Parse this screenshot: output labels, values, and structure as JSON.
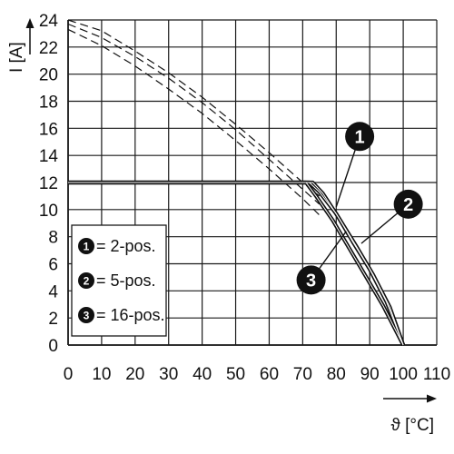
{
  "chart_data": {
    "type": "line",
    "xlabel": "ϑ [°C]",
    "ylabel": "I [A]",
    "xlim": [
      0,
      110
    ],
    "ylim": [
      0,
      24
    ],
    "x_ticks": [
      0,
      10,
      20,
      30,
      40,
      50,
      60,
      70,
      80,
      90,
      100,
      110
    ],
    "y_ticks": [
      0,
      2,
      4,
      6,
      8,
      10,
      12,
      14,
      16,
      18,
      20,
      22,
      24
    ],
    "grid": true,
    "legend_position": "bottom-left",
    "legend": [
      {
        "badge": "1",
        "label": "= 2-pos."
      },
      {
        "badge": "2",
        "label": "= 5-pos."
      },
      {
        "badge": "3",
        "label": "= 16-pos."
      }
    ],
    "series": [
      {
        "badge": "1",
        "style": "solid",
        "x": [
          0,
          72,
          75,
          80,
          85,
          90,
          95,
          100
        ],
        "y": [
          12,
          12,
          11.3,
          9.7,
          7.6,
          5.6,
          3.2,
          0
        ]
      },
      {
        "badge": "2",
        "style": "solid",
        "x": [
          0,
          73,
          76,
          81,
          86,
          91,
          96,
          100
        ],
        "y": [
          12,
          12,
          11.2,
          9.3,
          7.3,
          5.2,
          2.8,
          0
        ]
      },
      {
        "badge": "3",
        "style": "solid",
        "x": [
          0,
          71,
          74,
          79,
          84,
          89,
          94,
          100
        ],
        "y": [
          12,
          12,
          11.0,
          9.2,
          7.1,
          5.0,
          2.9,
          0
        ]
      },
      {
        "badge": "1",
        "style": "dashed",
        "x": [
          0,
          10,
          20,
          30,
          40,
          50,
          60,
          70,
          75
        ],
        "y": [
          24,
          23.2,
          21.7,
          20.1,
          18.3,
          16.3,
          14.2,
          12.0,
          11.0
        ]
      },
      {
        "badge": "2",
        "style": "dashed",
        "x": [
          0,
          10,
          20,
          30,
          40,
          50,
          60,
          70,
          75
        ],
        "y": [
          23.7,
          22.7,
          21.3,
          19.7,
          17.9,
          15.9,
          13.7,
          11.5,
          10.4
        ]
      },
      {
        "badge": "3",
        "style": "dashed",
        "x": [
          0,
          10,
          20,
          30,
          40,
          50,
          60,
          70,
          75
        ],
        "y": [
          23.3,
          22.1,
          20.6,
          18.9,
          17.1,
          15.1,
          13.0,
          10.8,
          9.6
        ]
      }
    ],
    "callouts": [
      {
        "badge": "1",
        "label_x": 87,
        "label_y": 15.4,
        "target_x": 80,
        "target_y": 10.2
      },
      {
        "badge": "2",
        "label_x": 101.5,
        "label_y": 10.4,
        "target_x": 87.5,
        "target_y": 7.5
      },
      {
        "badge": "3",
        "label_x": 72.5,
        "label_y": 4.8,
        "target_x": 83,
        "target_y": 8.4
      }
    ]
  },
  "colors": {
    "curve": "#111111",
    "grid": "#1a1a1a",
    "badge_fill": "#111111",
    "badge_text": "#ffffff",
    "background": "#ffffff"
  }
}
